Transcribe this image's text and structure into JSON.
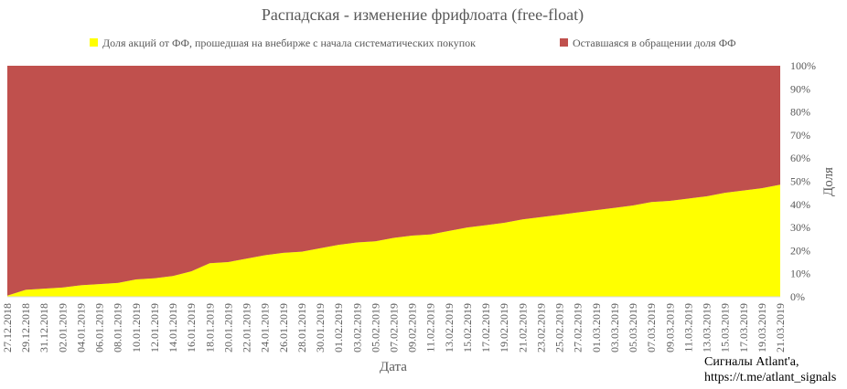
{
  "chart_data": {
    "type": "area",
    "title": "Распадская - изменение фрифлоата (free-float)",
    "xlabel": "Дата",
    "ylabel": "Доля",
    "ylim": [
      0,
      100
    ],
    "y_ticks": [
      "0%",
      "10%",
      "20%",
      "30%",
      "40%",
      "50%",
      "60%",
      "70%",
      "80%",
      "90%",
      "100%"
    ],
    "stacked_percent": true,
    "legend_position": "top",
    "x_labels": [
      "27.12.2018",
      "29.12.2018",
      "31.12.2018",
      "02.01.2019",
      "04.01.2019",
      "06.01.2019",
      "08.01.2019",
      "10.01.2019",
      "12.01.2019",
      "14.01.2019",
      "16.01.2019",
      "18.01.2019",
      "20.01.2019",
      "22.01.2019",
      "24.01.2019",
      "26.01.2019",
      "28.01.2019",
      "30.01.2019",
      "01.02.2019",
      "03.02.2019",
      "05.02.2019",
      "07.02.2019",
      "09.02.2019",
      "11.02.2019",
      "13.02.2019",
      "15.02.2019",
      "17.02.2019",
      "19.02.2019",
      "21.02.2019",
      "23.02.2019",
      "25.02.2019",
      "27.02.2019",
      "01.03.2019",
      "03.03.2019",
      "05.03.2019",
      "07.03.2019",
      "09.03.2019",
      "11.03.2019",
      "13.03.2019",
      "15.03.2019",
      "17.03.2019",
      "19.03.2019",
      "21.03.2019"
    ],
    "series": [
      {
        "name": "Доля акций от ФФ, прошедшая на внебирже с начала систематических покупок",
        "color": "#FFFF00",
        "values": [
          0.5,
          3.0,
          3.5,
          4.0,
          5.0,
          5.5,
          6.0,
          7.5,
          8.0,
          9.0,
          11.0,
          14.5,
          15.0,
          16.5,
          18.0,
          19.0,
          19.5,
          21.0,
          22.5,
          23.5,
          24.0,
          25.5,
          26.5,
          27.0,
          28.5,
          30.0,
          31.0,
          32.0,
          33.5,
          34.5,
          35.5,
          36.5,
          37.5,
          38.5,
          39.5,
          41.0,
          41.5,
          42.5,
          43.5,
          45.0,
          46.0,
          47.0,
          48.5
        ]
      },
      {
        "name": "Оставшаяся в обращении доля ФФ",
        "color": "#C0504D",
        "values": [
          99.5,
          97.0,
          96.5,
          96.0,
          95.0,
          94.5,
          94.0,
          92.5,
          92.0,
          91.0,
          89.0,
          85.5,
          85.0,
          83.5,
          82.0,
          81.0,
          80.5,
          79.0,
          77.5,
          76.5,
          76.0,
          74.5,
          73.5,
          73.0,
          71.5,
          70.0,
          69.0,
          68.0,
          66.5,
          65.5,
          64.5,
          63.5,
          62.5,
          61.5,
          60.5,
          59.0,
          58.5,
          57.5,
          56.5,
          55.0,
          54.0,
          53.0,
          51.5
        ]
      }
    ]
  },
  "credit": {
    "line1": "Сигналы Atlant'a,",
    "line2": "https://t.me/atlant_signals"
  }
}
